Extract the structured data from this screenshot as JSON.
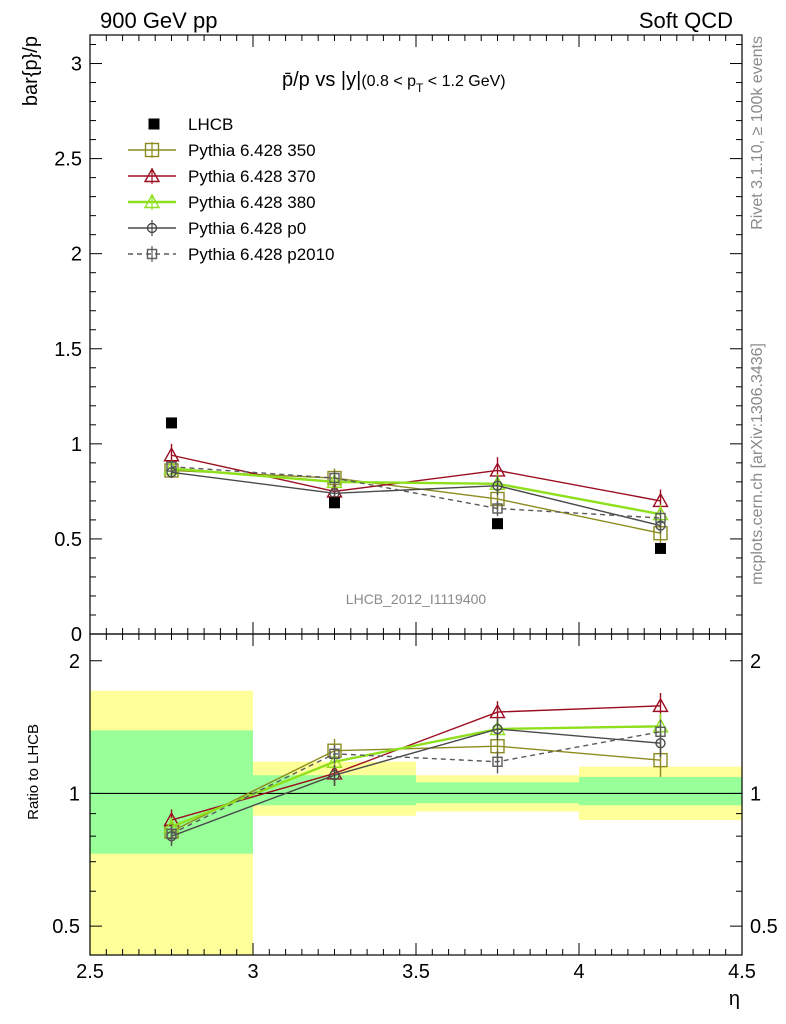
{
  "header": {
    "left": "900 GeV pp",
    "right": "Soft QCD"
  },
  "side_text": {
    "rivet": "Rivet 3.1.10, ≥ 100k events",
    "mcplots": "mcplots.cern.ch [arXiv:1306.3436]"
  },
  "watermark": "LHCB_2012_I1119400",
  "colors": {
    "data": "#000000",
    "p350": "#8c8c1e",
    "p370": "#9b0d22",
    "p380": "#8ee01c",
    "p0": "#4a4a4a",
    "p2010": "#5a5a5a",
    "band_outer": "#ffff99",
    "band_inner": "#99ff99"
  },
  "chart_data": [
    {
      "type": "line",
      "title_main": "p̄/p vs |y|",
      "title_paren_open": "(0.8 < p",
      "title_sub": "T",
      "title_paren_close": " < 1.2 GeV)",
      "ylabel": "bar{p}/p",
      "xlim": [
        2.5,
        4.5
      ],
      "ylim": [
        0,
        3.15
      ],
      "yticks": [
        0.5,
        1,
        1.5,
        2,
        2.5,
        3
      ],
      "ytick_labels": [
        "0.5",
        "1",
        "1.5",
        "2",
        "2.5",
        "3"
      ],
      "ytick_partial_label": "0",
      "x": [
        2.75,
        3.25,
        3.75,
        4.25
      ],
      "data": {
        "name": "LHCB",
        "x": [
          2.75,
          3.25,
          3.75,
          4.25
        ],
        "y": [
          1.11,
          0.69,
          0.58,
          0.45
        ]
      },
      "series": [
        {
          "name": "Pythia 6.428 350",
          "key": "p350",
          "marker": "square-open",
          "dashed": false,
          "values": [
            0.86,
            0.82,
            0.71,
            0.53
          ],
          "errors": [
            0.04,
            0.05,
            0.06,
            0.05
          ]
        },
        {
          "name": "Pythia 6.428 370",
          "key": "p370",
          "marker": "triangle-open",
          "dashed": false,
          "values": [
            0.94,
            0.75,
            0.86,
            0.7
          ],
          "errors": [
            0.06,
            0.05,
            0.07,
            0.06
          ]
        },
        {
          "name": "Pythia 6.428 380",
          "key": "p380",
          "marker": "triangle-open",
          "dashed": false,
          "values": [
            0.87,
            0.8,
            0.79,
            0.63
          ],
          "errors": [
            0.04,
            0.04,
            0.05,
            0.05
          ]
        },
        {
          "name": "Pythia 6.428 p0",
          "key": "p0",
          "marker": "circle-open",
          "dashed": false,
          "values": [
            0.85,
            0.74,
            0.78,
            0.57
          ],
          "errors": [
            0.03,
            0.04,
            0.05,
            0.04
          ]
        },
        {
          "name": "Pythia 6.428 p2010",
          "key": "p2010",
          "marker": "square-open-small",
          "dashed": true,
          "values": [
            0.88,
            0.82,
            0.66,
            0.61
          ],
          "errors": [
            0.03,
            0.04,
            0.04,
            0.04
          ]
        }
      ]
    },
    {
      "type": "line",
      "ylabel": "Ratio to LHCB",
      "xlabel": "η",
      "xlim": [
        2.5,
        4.5
      ],
      "ylim": [
        0.43,
        2.3
      ],
      "log_y": true,
      "yticks": [
        0.5,
        1,
        2
      ],
      "ytick_labels": [
        "0.5",
        "1",
        "2"
      ],
      "xticks": [
        2.5,
        3,
        3.5,
        4,
        4.5
      ],
      "xtick_labels": [
        "2.5",
        "3",
        "3.5",
        "4",
        "4.5"
      ],
      "x": [
        2.75,
        3.25,
        3.75,
        4.25
      ],
      "bands": [
        {
          "x0": 2.5,
          "x1": 3.0,
          "outer": [
            0.43,
            1.71
          ],
          "inner": [
            0.73,
            1.39
          ]
        },
        {
          "x0": 3.0,
          "x1": 3.5,
          "outer": [
            0.89,
            1.18
          ],
          "inner": [
            0.94,
            1.1
          ]
        },
        {
          "x0": 3.5,
          "x1": 4.0,
          "outer": [
            0.91,
            1.1
          ],
          "inner": [
            0.95,
            1.06
          ]
        },
        {
          "x0": 4.0,
          "x1": 4.5,
          "outer": [
            0.87,
            1.15
          ],
          "inner": [
            0.94,
            1.09
          ]
        }
      ],
      "series": [
        {
          "name": "Pythia 6.428 350",
          "key": "p350",
          "values": [
            0.82,
            1.25,
            1.28,
            1.19
          ],
          "errors": [
            0.05,
            0.08,
            0.1,
            0.1
          ]
        },
        {
          "name": "Pythia 6.428 370",
          "key": "p370",
          "values": [
            0.87,
            1.11,
            1.53,
            1.58
          ],
          "errors": [
            0.05,
            0.07,
            0.09,
            0.11
          ]
        },
        {
          "name": "Pythia 6.428 380",
          "key": "p380",
          "values": [
            0.84,
            1.18,
            1.4,
            1.42
          ],
          "errors": [
            0.04,
            0.06,
            0.08,
            0.1
          ]
        },
        {
          "name": "Pythia 6.428 p0",
          "key": "p0",
          "values": [
            0.8,
            1.1,
            1.4,
            1.3
          ],
          "errors": [
            0.04,
            0.06,
            0.08,
            0.09
          ]
        },
        {
          "name": "Pythia 6.428 p2010",
          "key": "p2010",
          "values": [
            0.81,
            1.23,
            1.18,
            1.38
          ],
          "errors": [
            0.04,
            0.06,
            0.07,
            0.09
          ]
        }
      ]
    }
  ]
}
